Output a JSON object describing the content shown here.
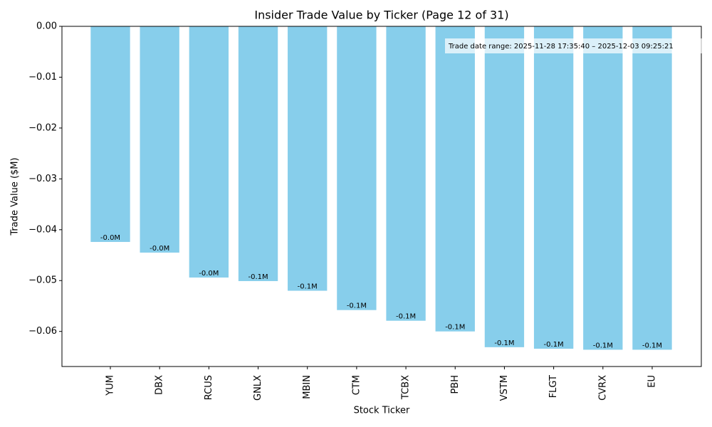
{
  "chart_data": {
    "type": "bar",
    "title": "Insider Trade Value by Ticker (Page 12 of 31)",
    "x_label": "Stock Ticker",
    "y_label": "Trade Value ($M)",
    "annotation": "Trade date range: 2025-11-28 17:35:40 – 2025-12-03 09:25:21",
    "categories": [
      "YUM",
      "DBX",
      "RCUS",
      "GNLX",
      "MBIN",
      "CTM",
      "TCBX",
      "PBH",
      "VSTM",
      "FLGT",
      "CVRX",
      "EU"
    ],
    "values": [
      -0.0424,
      -0.0445,
      -0.0494,
      -0.0501,
      -0.052,
      -0.0558,
      -0.0579,
      -0.06,
      -0.0631,
      -0.0634,
      -0.0636,
      -0.0636
    ],
    "value_labels": [
      "-0.0M",
      "-0.0M",
      "-0.0M",
      "-0.1M",
      "-0.1M",
      "-0.1M",
      "-0.1M",
      "-0.1M",
      "-0.1M",
      "-0.1M",
      "-0.1M",
      "-0.1M"
    ],
    "color": "#87ceeb",
    "ylim": [
      -0.0669,
      0
    ],
    "yticks": [
      {
        "value": 0,
        "label": "0.00"
      },
      {
        "value": -0.01,
        "label": "−0.01"
      },
      {
        "value": -0.02,
        "label": "−0.02"
      },
      {
        "value": -0.03,
        "label": "−0.03"
      },
      {
        "value": -0.04,
        "label": "−0.04"
      },
      {
        "value": -0.05,
        "label": "−0.05"
      },
      {
        "value": -0.06,
        "label": "−0.06"
      }
    ],
    "grid": false
  }
}
